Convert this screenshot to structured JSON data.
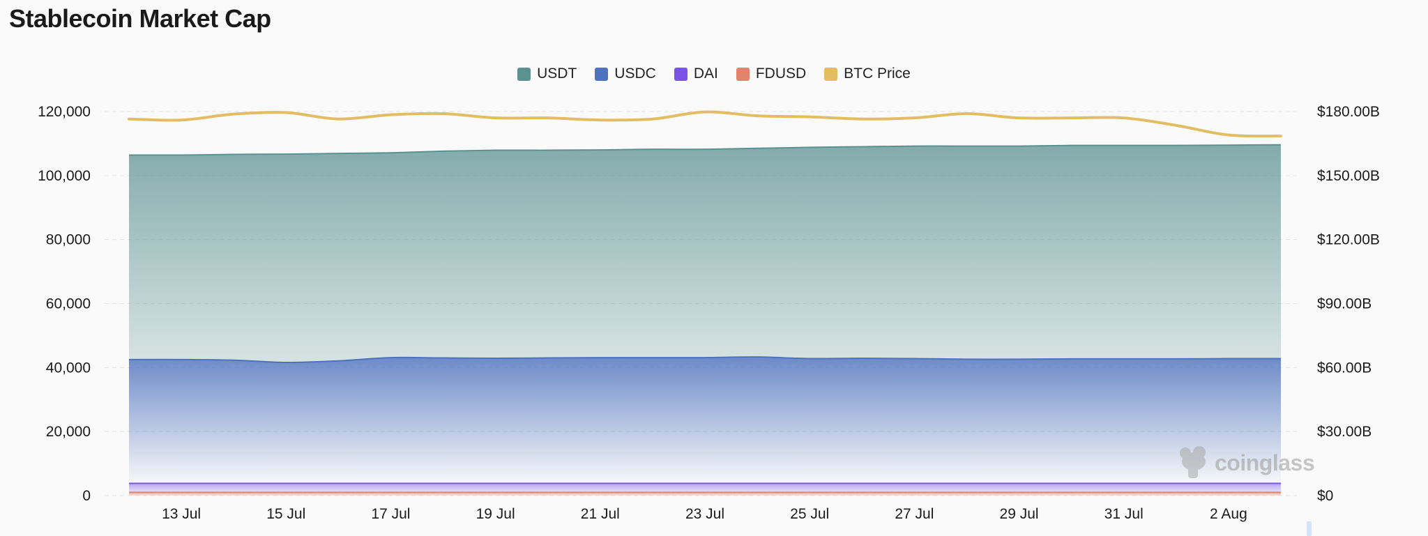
{
  "page": {
    "title": "Stablecoin Market Cap"
  },
  "legend": [
    {
      "name": "USDT",
      "color": "#5b9191"
    },
    {
      "name": "USDC",
      "color": "#4d72be"
    },
    {
      "name": "DAI",
      "color": "#7b53e8"
    },
    {
      "name": "FDUSD",
      "color": "#e0846e"
    },
    {
      "name": "BTC Price",
      "color": "#e3bd62"
    }
  ],
  "watermark": {
    "text": "coinglass",
    "icon": "coinglass-logo-icon"
  },
  "chart_data": {
    "type": "area",
    "stacked": true,
    "grid": true,
    "legend_position": "top-center",
    "x": [
      "12 Jul",
      "13 Jul",
      "14 Jul",
      "15 Jul",
      "16 Jul",
      "17 Jul",
      "18 Jul",
      "19 Jul",
      "20 Jul",
      "21 Jul",
      "22 Jul",
      "23 Jul",
      "24 Jul",
      "25 Jul",
      "26 Jul",
      "27 Jul",
      "28 Jul",
      "29 Jul",
      "30 Jul",
      "31 Jul",
      "1 Aug",
      "2 Aug",
      "3 Aug"
    ],
    "x_ticks": [
      "13 Jul",
      "15 Jul",
      "17 Jul",
      "19 Jul",
      "21 Jul",
      "23 Jul",
      "25 Jul",
      "27 Jul",
      "29 Jul",
      "31 Jul",
      "2 Aug"
    ],
    "y_left": {
      "ticks": [
        "0",
        "20,000",
        "40,000",
        "60,000",
        "80,000",
        "100,000",
        "120,000"
      ],
      "range": [
        0,
        120000
      ]
    },
    "y_right": {
      "ticks": [
        "$0",
        "$30.00B",
        "$60.00B",
        "$90.00B",
        "$120.00B",
        "$150.00B",
        "$180.00B"
      ],
      "range": [
        0,
        180
      ]
    },
    "series": [
      {
        "name": "FDUSD",
        "color": "#e0846e",
        "axis": "left",
        "values": [
          1000,
          1000,
          1000,
          1000,
          1000,
          1000,
          1000,
          1000,
          1000,
          1000,
          1000,
          1000,
          1000,
          1000,
          1000,
          1000,
          1000,
          1000,
          1000,
          1000,
          1000,
          1000,
          1000
        ]
      },
      {
        "name": "DAI",
        "color": "#7b53e8",
        "axis": "left",
        "values": [
          2800,
          2800,
          2800,
          2800,
          2800,
          2800,
          2800,
          2800,
          2800,
          2800,
          2800,
          2800,
          2800,
          2800,
          2800,
          2800,
          2800,
          2800,
          2800,
          2800,
          2800,
          2800,
          2800
        ]
      },
      {
        "name": "USDC",
        "color": "#4d72be",
        "axis": "left",
        "values": [
          38700,
          38700,
          38500,
          37800,
          38300,
          39300,
          39200,
          39100,
          39200,
          39300,
          39300,
          39300,
          39500,
          39000,
          39100,
          39000,
          38800,
          38800,
          38900,
          38900,
          38900,
          39000,
          39000
        ]
      },
      {
        "name": "USDT",
        "color": "#5b9191",
        "axis": "left",
        "values": [
          63900,
          63900,
          64300,
          65100,
          64800,
          64000,
          64600,
          65000,
          64900,
          64900,
          65100,
          65100,
          65200,
          66000,
          66100,
          66400,
          66600,
          66600,
          66700,
          66700,
          66700,
          66700,
          66800
        ]
      },
      {
        "name": "BTC Price",
        "color": "#e3bd62",
        "axis": "right",
        "type": "line",
        "values": [
          176.5,
          176.0,
          178.8,
          179.5,
          176.5,
          178.5,
          179.0,
          177.0,
          177.0,
          176.0,
          176.5,
          179.8,
          178.0,
          177.5,
          176.5,
          177.0,
          179.0,
          177.0,
          177.0,
          177.0,
          173.5,
          169.0,
          168.5
        ]
      }
    ]
  }
}
